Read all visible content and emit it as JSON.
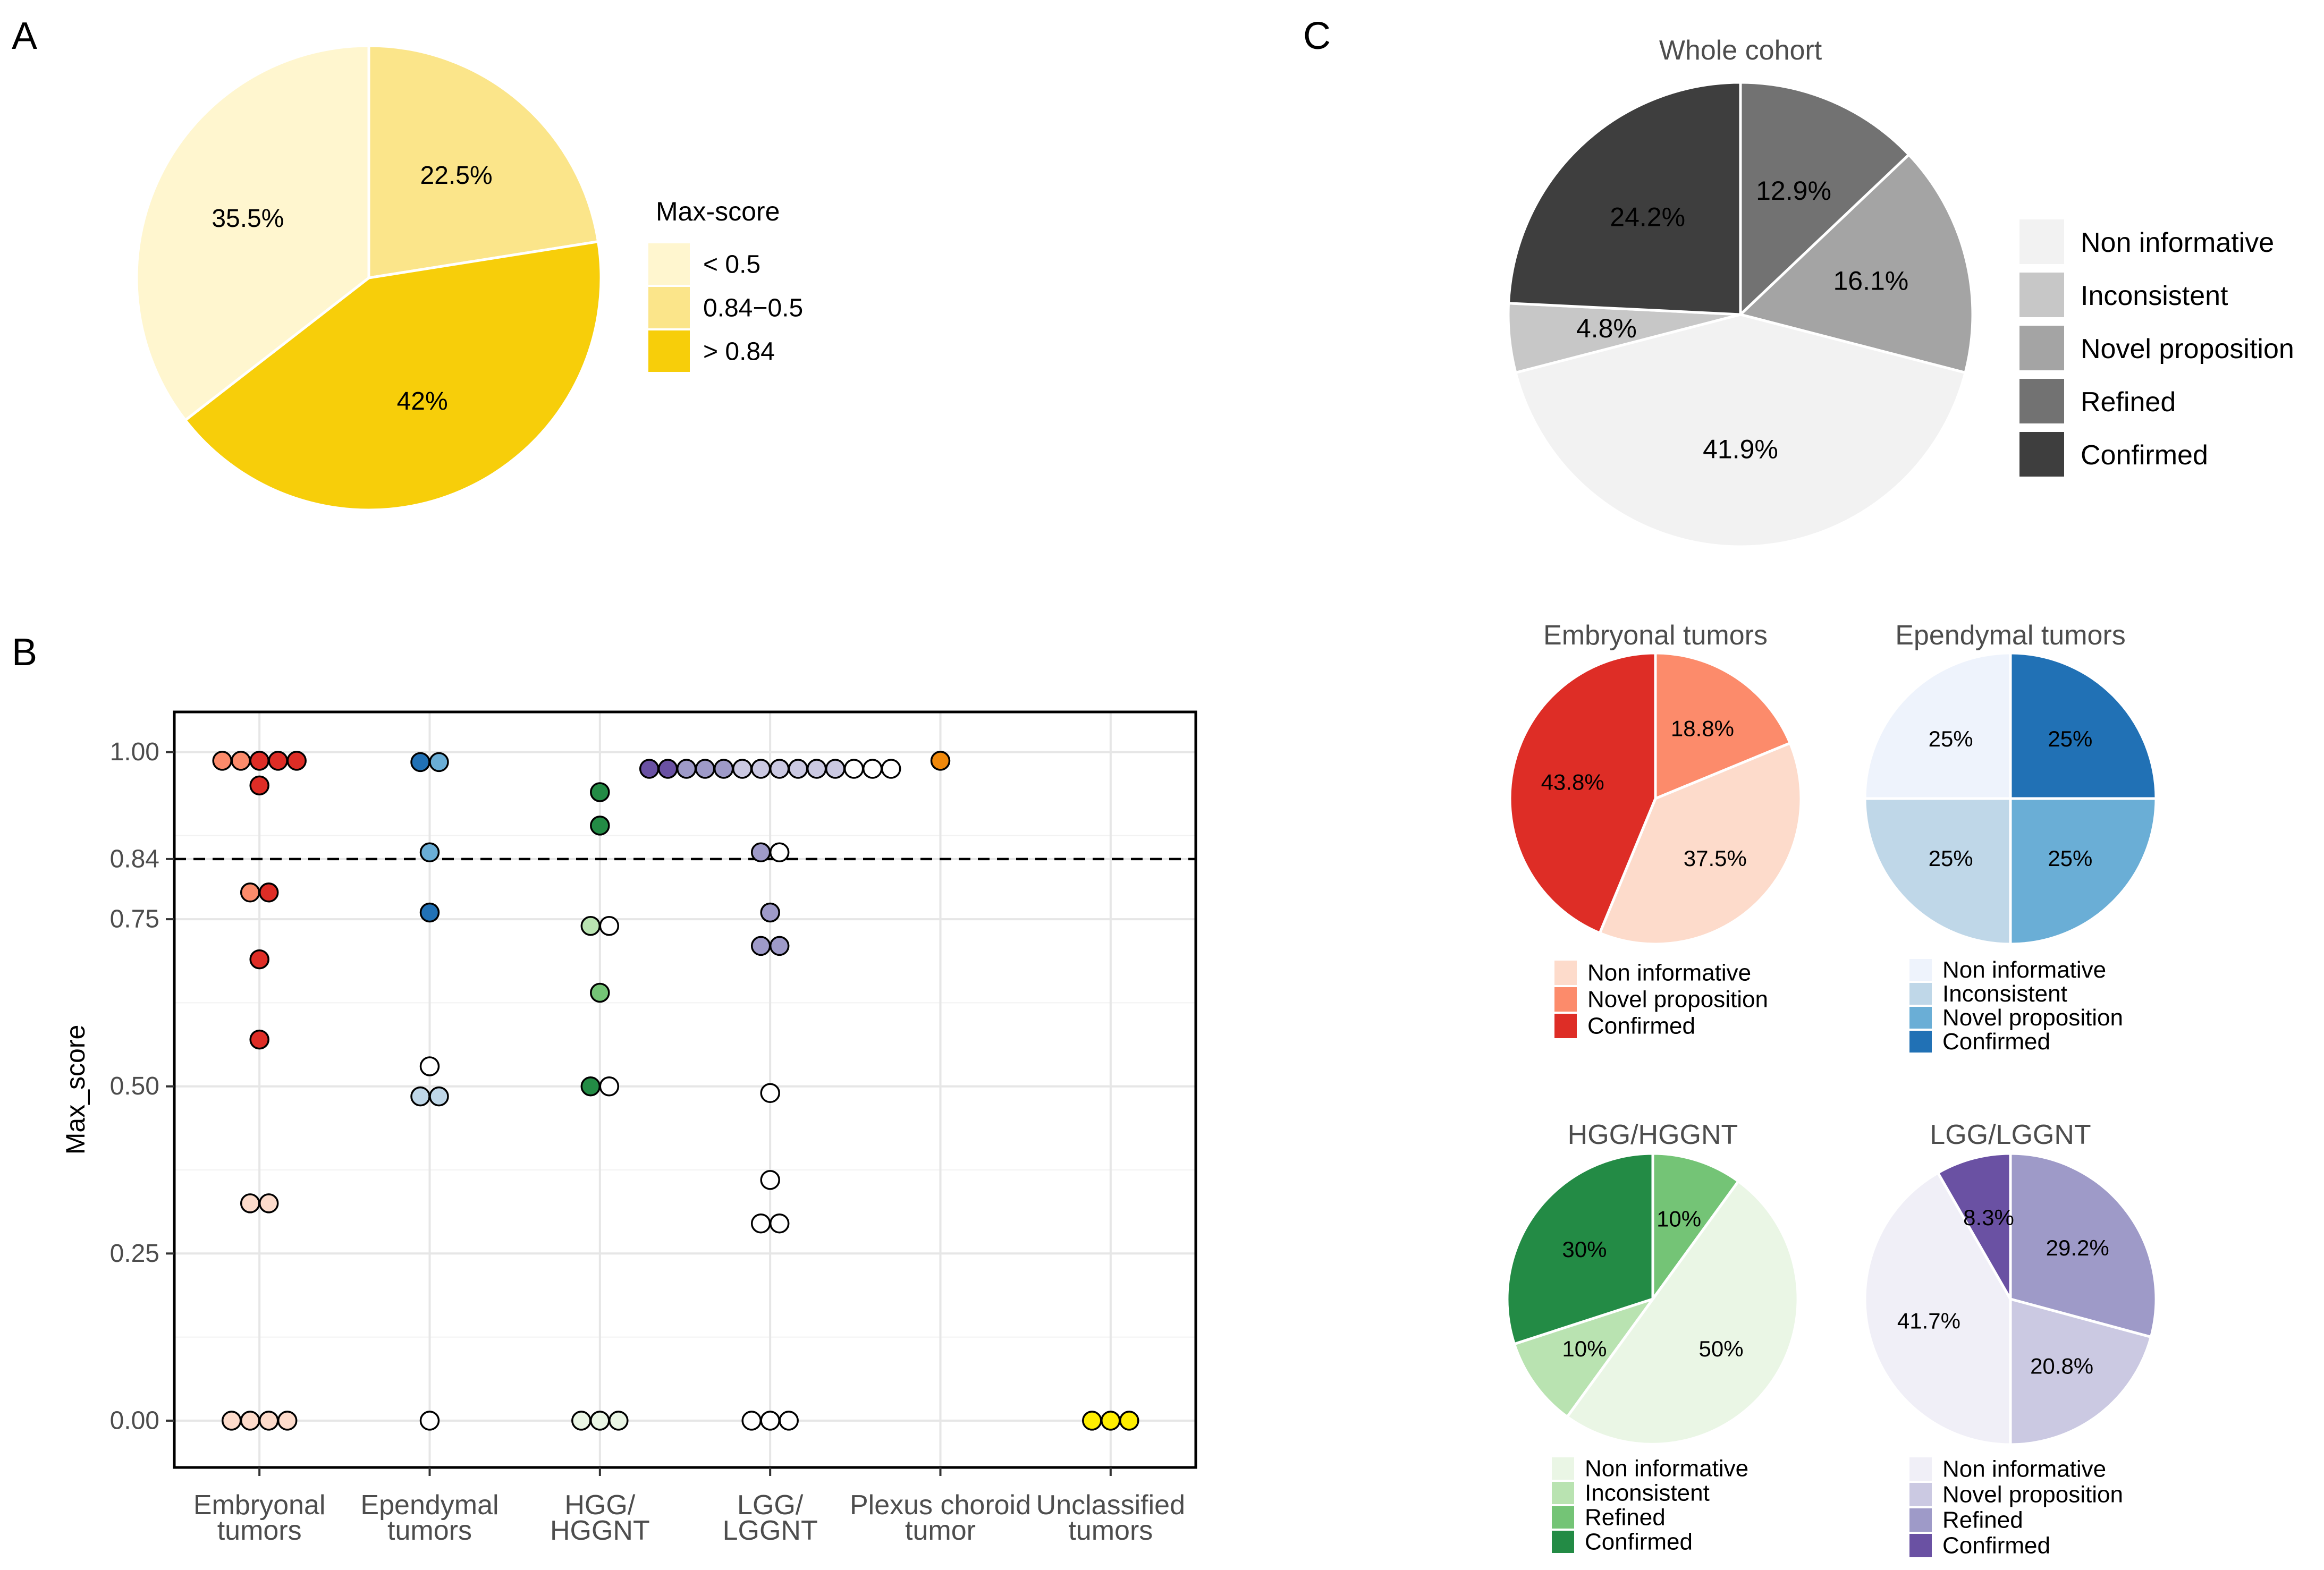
{
  "panel_labels": {
    "a": "A",
    "b": "B",
    "c": "C"
  },
  "colors": {
    "yellow": [
      "#FFF6CF",
      "#FBE58A",
      "#F7CE0A"
    ],
    "grey": [
      "#F2F2F2",
      "#C7C7C7",
      "#A4A4A4",
      "#727272",
      "#3E3E3E"
    ],
    "red": [
      "#FDDBCB",
      "#FC8B6B",
      "#DE2D26"
    ],
    "blue": [
      "#EEF3FC",
      "#BFD7E8",
      "#6AAED6",
      "#2171B5"
    ],
    "green": [
      "#EAF6E5",
      "#B9E3B1",
      "#74C476",
      "#238B45"
    ],
    "purple": [
      "#F0EFF7",
      "#CBC9E2",
      "#9E9AC8",
      "#6A51A3"
    ],
    "orange": "#F0880A",
    "unclassified": "#FFEE00",
    "white": "#FFFFFF"
  },
  "chart_data": [
    {
      "id": "A",
      "type": "pie",
      "title": "",
      "legend_title": "Max-score",
      "legend_position": "right",
      "slices": [
        {
          "label": "< 0.5",
          "value": 35.5,
          "text": "35.5%",
          "color": "#FFF6CF"
        },
        {
          "label": "0.84−0.5",
          "value": 22.5,
          "text": "22.5%",
          "color": "#FBE58A"
        },
        {
          "label": "> 0.84",
          "value": 42,
          "text": "42%",
          "color": "#F7CE0A"
        }
      ],
      "slice_order": [
        1,
        2,
        0
      ]
    },
    {
      "id": "B",
      "type": "scatter",
      "ylabel": "Max_score",
      "ylim": [
        -0.07,
        1.06
      ],
      "yticks": [
        "0.00",
        "0.25",
        "0.50",
        "0.75",
        "0.84",
        "1.00"
      ],
      "threshold": 0.84,
      "categories": [
        {
          "l1": "Embryonal",
          "l2": "tumors"
        },
        {
          "l1": "Ependymal",
          "l2": "tumors"
        },
        {
          "l1": "HGG/",
          "l2": "HGGNT"
        },
        {
          "l1": "LGG/",
          "l2": "LGGNT"
        },
        {
          "l1": "Plexus choroid",
          "l2": "tumor"
        },
        {
          "l1": "Unclassified",
          "l2": "tumors"
        }
      ],
      "points": [
        {
          "cat": 0,
          "y": 0.987,
          "color": "#FC8B6B",
          "n": 2
        },
        {
          "cat": 0,
          "y": 0.987,
          "color": "#DE2D26",
          "n": 3
        },
        {
          "cat": 0,
          "y": 0.95,
          "color": "#DE2D26",
          "n": 1
        },
        {
          "cat": 0,
          "y": 0.79,
          "color": "#FC8B6B",
          "n": 1
        },
        {
          "cat": 0,
          "y": 0.79,
          "color": "#DE2D26",
          "n": 1
        },
        {
          "cat": 0,
          "y": 0.69,
          "color": "#DE2D26",
          "n": 1
        },
        {
          "cat": 0,
          "y": 0.57,
          "color": "#DE2D26",
          "n": 1
        },
        {
          "cat": 0,
          "y": 0.325,
          "color": "#FDDBCB",
          "n": 2
        },
        {
          "cat": 0,
          "y": 0.0,
          "color": "#FDDBCB",
          "n": 4
        },
        {
          "cat": 1,
          "y": 0.985,
          "color": "#2171B5",
          "n": 1
        },
        {
          "cat": 1,
          "y": 0.985,
          "color": "#6AAED6",
          "n": 1
        },
        {
          "cat": 1,
          "y": 0.85,
          "color": "#6AAED6",
          "n": 1
        },
        {
          "cat": 1,
          "y": 0.76,
          "color": "#2171B5",
          "n": 1
        },
        {
          "cat": 1,
          "y": 0.53,
          "color": "#FFFFFF",
          "n": 1
        },
        {
          "cat": 1,
          "y": 0.485,
          "color": "#BFD7E8",
          "n": 2
        },
        {
          "cat": 1,
          "y": 0.0,
          "color": "#FFFFFF",
          "n": 1
        },
        {
          "cat": 2,
          "y": 0.94,
          "color": "#238B45",
          "n": 1
        },
        {
          "cat": 2,
          "y": 0.89,
          "color": "#238B45",
          "n": 1
        },
        {
          "cat": 2,
          "y": 0.74,
          "color": "#B9E3B1",
          "n": 1
        },
        {
          "cat": 2,
          "y": 0.74,
          "color": "#FFFFFF",
          "n": 1
        },
        {
          "cat": 2,
          "y": 0.64,
          "color": "#74C476",
          "n": 1
        },
        {
          "cat": 2,
          "y": 0.5,
          "color": "#238B45",
          "n": 1
        },
        {
          "cat": 2,
          "y": 0.5,
          "color": "#FFFFFF",
          "n": 1
        },
        {
          "cat": 2,
          "y": 0.0,
          "color": "#EAF6E5",
          "n": 3
        },
        {
          "cat": 3,
          "y": 0.975,
          "color": "#6A51A3",
          "n": 2
        },
        {
          "cat": 3,
          "y": 0.975,
          "color": "#9E9AC8",
          "n": 3
        },
        {
          "cat": 3,
          "y": 0.975,
          "color": "#CBC9E2",
          "n": 6
        },
        {
          "cat": 3,
          "y": 0.975,
          "color": "#FFFFFF",
          "n": 3
        },
        {
          "cat": 3,
          "y": 0.85,
          "color": "#9E9AC8",
          "n": 1
        },
        {
          "cat": 3,
          "y": 0.85,
          "color": "#FFFFFF",
          "n": 1
        },
        {
          "cat": 3,
          "y": 0.76,
          "color": "#9E9AC8",
          "n": 1
        },
        {
          "cat": 3,
          "y": 0.71,
          "color": "#9E9AC8",
          "n": 2
        },
        {
          "cat": 3,
          "y": 0.49,
          "color": "#FFFFFF",
          "n": 1
        },
        {
          "cat": 3,
          "y": 0.36,
          "color": "#FFFFFF",
          "n": 1
        },
        {
          "cat": 3,
          "y": 0.295,
          "color": "#FFFFFF",
          "n": 2
        },
        {
          "cat": 3,
          "y": 0.0,
          "color": "#FFFFFF",
          "n": 3
        },
        {
          "cat": 4,
          "y": 0.987,
          "color": "#F0880A",
          "n": 1
        },
        {
          "cat": 5,
          "y": 0.0,
          "color": "#FFEE00",
          "n": 3
        }
      ]
    },
    {
      "id": "C-whole",
      "type": "pie",
      "title": "Whole cohort",
      "legend_position": "right",
      "legend": [
        {
          "label": "Non informative",
          "color": "#F2F2F2"
        },
        {
          "label": "Inconsistent",
          "color": "#C7C7C7"
        },
        {
          "label": "Novel proposition",
          "color": "#A4A4A4"
        },
        {
          "label": "Refined",
          "color": "#727272"
        },
        {
          "label": "Confirmed",
          "color": "#3E3E3E"
        }
      ],
      "slices": [
        {
          "value": 12.9,
          "text": "12.9%",
          "color": "#727272"
        },
        {
          "value": 16.1,
          "text": "16.1%",
          "color": "#A4A4A4"
        },
        {
          "value": 41.9,
          "text": "41.9%",
          "color": "#F2F2F2"
        },
        {
          "value": 4.8,
          "text": "4.8%",
          "color": "#C7C7C7"
        },
        {
          "value": 24.2,
          "text": "24.2%",
          "color": "#3E3E3E"
        }
      ]
    },
    {
      "id": "C-embryonal",
      "type": "pie",
      "title": "Embryonal tumors",
      "legend_position": "bottom",
      "legend": [
        {
          "label": "Non informative",
          "color": "#FDDBCB"
        },
        {
          "label": "Novel proposition",
          "color": "#FC8B6B"
        },
        {
          "label": "Confirmed",
          "color": "#DE2D26"
        }
      ],
      "slices": [
        {
          "value": 18.8,
          "text": "18.8%",
          "color": "#FC8B6B"
        },
        {
          "value": 37.5,
          "text": "37.5%",
          "color": "#FDDBCB"
        },
        {
          "value": 43.8,
          "text": "43.8%",
          "color": "#DE2D26"
        }
      ]
    },
    {
      "id": "C-ependymal",
      "type": "pie",
      "title": "Ependymal tumors",
      "legend_position": "bottom",
      "legend": [
        {
          "label": "Non informative",
          "color": "#EEF3FC"
        },
        {
          "label": "Inconsistent",
          "color": "#BFD7E8"
        },
        {
          "label": "Novel proposition",
          "color": "#6AAED6"
        },
        {
          "label": "Confirmed",
          "color": "#2171B5"
        }
      ],
      "slices": [
        {
          "value": 25,
          "text": "25%",
          "color": "#2171B5"
        },
        {
          "value": 25,
          "text": "25%",
          "color": "#6AAED6"
        },
        {
          "value": 25,
          "text": "25%",
          "color": "#BFD7E8"
        },
        {
          "value": 25,
          "text": "25%",
          "color": "#EEF3FC"
        }
      ]
    },
    {
      "id": "C-hgg",
      "type": "pie",
      "title": "HGG/HGGNT",
      "legend_position": "bottom",
      "legend": [
        {
          "label": "Non informative",
          "color": "#EAF6E5"
        },
        {
          "label": "Inconsistent",
          "color": "#B9E3B1"
        },
        {
          "label": "Refined",
          "color": "#74C476"
        },
        {
          "label": "Confirmed",
          "color": "#238B45"
        }
      ],
      "slices": [
        {
          "value": 10,
          "text": "10%",
          "color": "#74C476"
        },
        {
          "value": 50,
          "text": "50%",
          "color": "#EAF6E5"
        },
        {
          "value": 10,
          "text": "10%",
          "color": "#B9E3B1"
        },
        {
          "value": 30,
          "text": "30%",
          "color": "#238B45"
        }
      ]
    },
    {
      "id": "C-lgg",
      "type": "pie",
      "title": "LGG/LGGNT",
      "legend_position": "bottom",
      "legend": [
        {
          "label": "Non informative",
          "color": "#F0EFF7"
        },
        {
          "label": "Novel proposition",
          "color": "#CBC9E2"
        },
        {
          "label": "Refined",
          "color": "#9E9AC8"
        },
        {
          "label": "Confirmed",
          "color": "#6A51A3"
        }
      ],
      "slices": [
        {
          "value": 29.2,
          "text": "29.2%",
          "color": "#9E9AC8"
        },
        {
          "value": 20.8,
          "text": "20.8%",
          "color": "#CBC9E2"
        },
        {
          "value": 41.7,
          "text": "41.7%",
          "color": "#F0EFF7"
        },
        {
          "value": 8.3,
          "text": "8.3%",
          "color": "#6A51A3"
        }
      ]
    }
  ]
}
